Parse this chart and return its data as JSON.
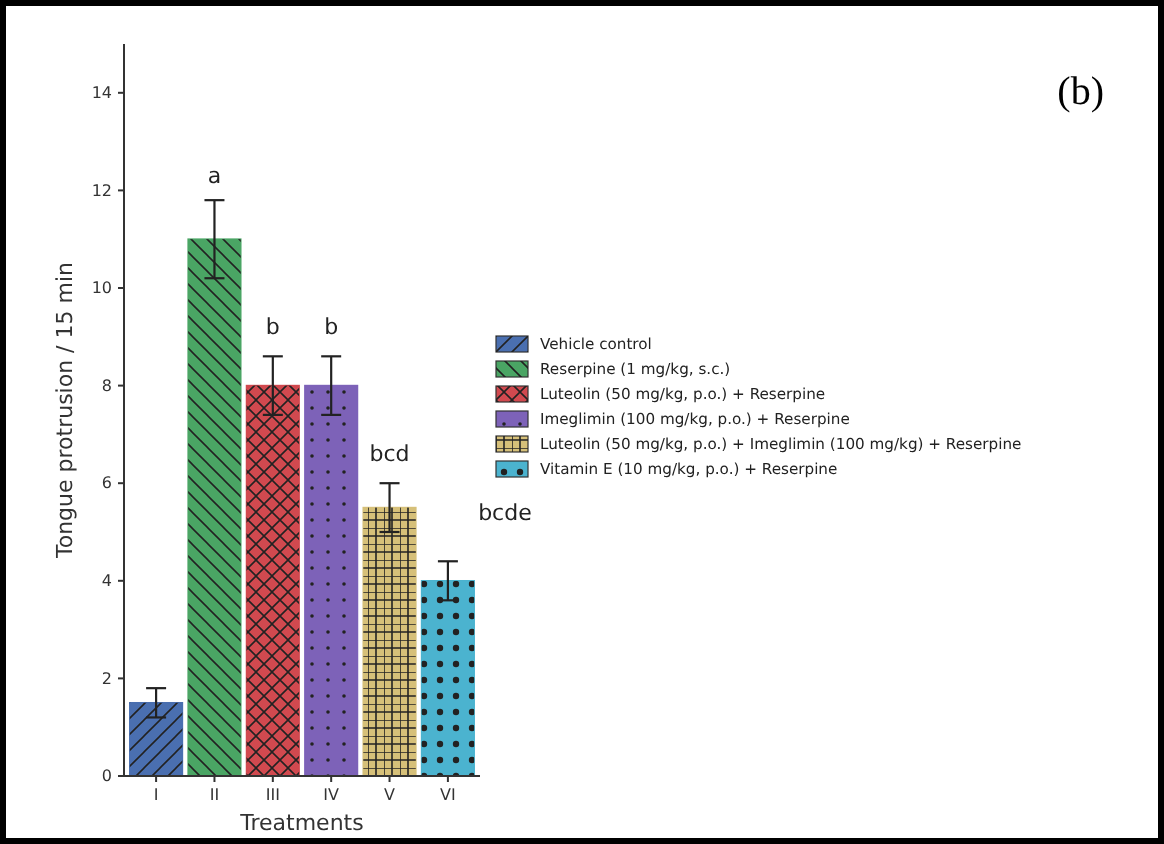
{
  "chart_data": {
    "type": "bar",
    "xlabel": "Treatments",
    "ylabel": "Tongue protrusion / 15 min",
    "categories": [
      "I",
      "II",
      "III",
      "IV",
      "V",
      "VI"
    ],
    "series": [
      {
        "name": "Vehicle control",
        "color": "#4a6fb0",
        "values": [
          1.5,
          null,
          null,
          null,
          null,
          null
        ],
        "errors": [
          0.3,
          null,
          null,
          null,
          null,
          null
        ]
      },
      {
        "name": "Reserpine (1 mg/kg, s.c.)",
        "color": "#4aa564",
        "values": [
          null,
          11,
          null,
          null,
          null,
          null
        ],
        "errors": [
          null,
          0.8,
          null,
          null,
          null,
          null
        ]
      },
      {
        "name": "Luteolin (50 mg/kg, p.o.) + Reserpine",
        "color": "#d1494f",
        "values": [
          null,
          null,
          8,
          null,
          null,
          null
        ],
        "errors": [
          null,
          null,
          0.6,
          null,
          null,
          null
        ]
      },
      {
        "name": "Imeglimin (100 mg/kg, p.o.) + Reserpine",
        "color": "#7d62b8",
        "values": [
          null,
          null,
          null,
          8,
          null,
          null
        ],
        "errors": [
          null,
          null,
          null,
          0.6,
          null,
          null
        ]
      },
      {
        "name": "Luteolin (50 mg/kg, p.o.) + Imeglimin (100 mg/kg) + Reserpine",
        "color": "#d6c079",
        "values": [
          null,
          null,
          null,
          null,
          5.5,
          null
        ],
        "errors": [
          null,
          null,
          null,
          null,
          0.5,
          null
        ]
      },
      {
        "name": "Vitamin E (10 mg/kg, p.o.) + Reserpine",
        "color": "#4bb3cf",
        "values": [
          null,
          null,
          null,
          null,
          null,
          4
        ],
        "errors": [
          null,
          null,
          null,
          null,
          null,
          0.4
        ]
      }
    ],
    "ylim": [
      0,
      15
    ],
    "yticks": [
      0,
      2,
      4,
      6,
      8,
      10,
      12,
      14
    ],
    "legend": "right",
    "annotations": [
      "a",
      "b",
      "b",
      "bcd",
      "bcde",
      "(b)"
    ]
  }
}
